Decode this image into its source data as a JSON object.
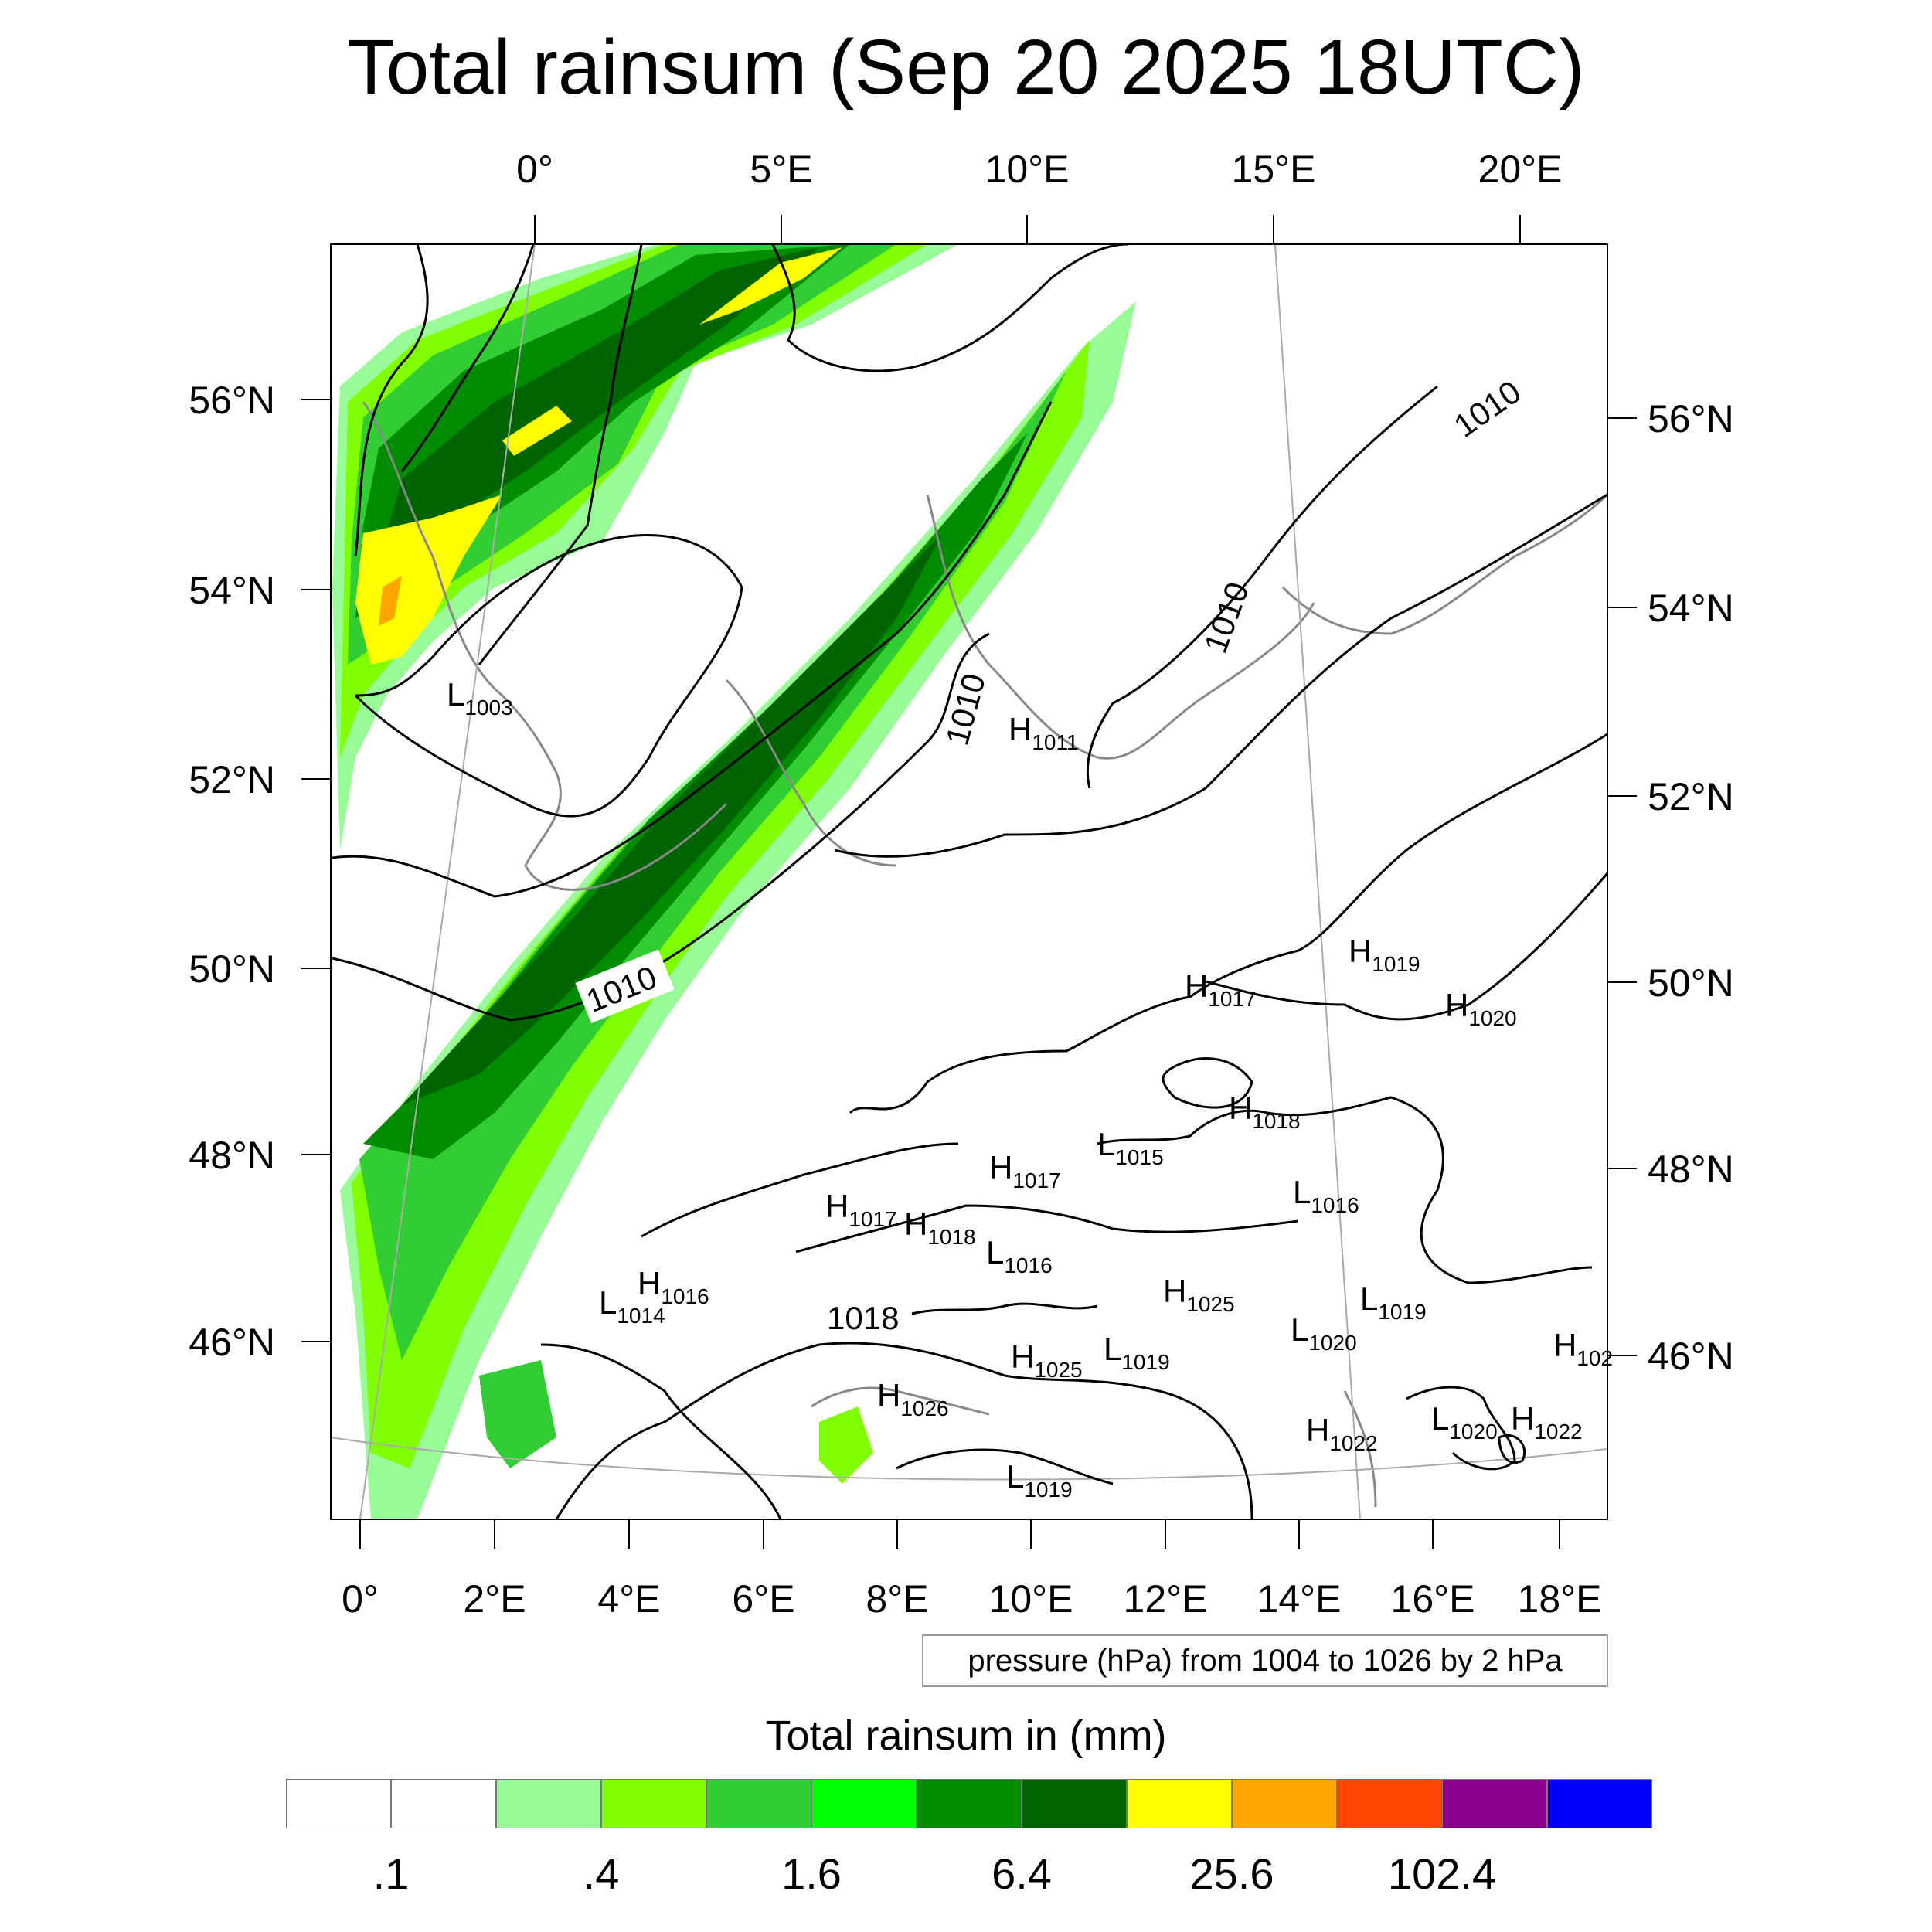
{
  "title": "Total rainsum (Sep 20 2025 18UTC)",
  "top_lon_labels": [
    "0°",
    "5°E",
    "10°E",
    "15°E",
    "20°E"
  ],
  "bottom_lon_labels": [
    "0°",
    "2°E",
    "4°E",
    "6°E",
    "8°E",
    "10°E",
    "12°E",
    "14°E",
    "16°E",
    "18°E"
  ],
  "left_lat_labels": [
    "56°N",
    "54°N",
    "52°N",
    "50°N",
    "48°N",
    "46°N"
  ],
  "right_lat_labels": [
    "56°N",
    "54°N",
    "52°N",
    "50°N",
    "48°N",
    "46°N"
  ],
  "contour_labels": {
    "c1010_ne": "1010",
    "c1010_mid": "1010",
    "c1010_north": "1010",
    "c1010_boxed": "1010",
    "c1018": "1018"
  },
  "pressure_centers": [
    {
      "letter": "L",
      "value": "1003"
    },
    {
      "letter": "H",
      "value": "1011"
    },
    {
      "letter": "H",
      "value": "1019"
    },
    {
      "letter": "H",
      "value": "1017"
    },
    {
      "letter": "H",
      "value": "1020"
    },
    {
      "letter": "H",
      "value": "1018"
    },
    {
      "letter": "L",
      "value": "1015"
    },
    {
      "letter": "H",
      "value": "1017"
    },
    {
      "letter": "L",
      "value": "1016"
    },
    {
      "letter": "H",
      "value": "1017"
    },
    {
      "letter": "H",
      "value": "1018"
    },
    {
      "letter": "L",
      "value": "1016"
    },
    {
      "letter": "H",
      "value": "1025"
    },
    {
      "letter": "L",
      "value": "1019"
    },
    {
      "letter": "H",
      "value": "1016"
    },
    {
      "letter": "L",
      "value": "1014"
    },
    {
      "letter": "L",
      "value": "1020"
    },
    {
      "letter": "H",
      "value": "102"
    },
    {
      "letter": "H",
      "value": "1025"
    },
    {
      "letter": "L",
      "value": "1019"
    },
    {
      "letter": "H",
      "value": "1026"
    },
    {
      "letter": "H",
      "value": "1022"
    },
    {
      "letter": "L",
      "value": "1020"
    },
    {
      "letter": "H",
      "value": "1022"
    },
    {
      "letter": "L",
      "value": "1019"
    }
  ],
  "pressure_note": "pressure (hPa) from 1004 to 1026 by 2 hPa",
  "colorbar": {
    "title": "Total rainsum in (mm)",
    "colors": [
      "#ffffff",
      "#ffffff",
      "#98fb98",
      "#7fff00",
      "#32cd32",
      "#00ff00",
      "#008b00",
      "#006400",
      "#ffff00",
      "#ffa500",
      "#ff4500",
      "#8b008b",
      "#0000ff"
    ],
    "labels": [
      ".1",
      ".4",
      "1.6",
      "6.4",
      "25.6",
      "102.4"
    ]
  },
  "colors": {
    "rain_light": "#98fb98",
    "rain_lime": "#7fff00",
    "rain_medium": "#32cd32",
    "rain_green": "#00ff00",
    "rain_dark": "#008b00",
    "rain_darker": "#006400",
    "rain_yellow": "#ffff00",
    "rain_orange": "#ffa500"
  }
}
